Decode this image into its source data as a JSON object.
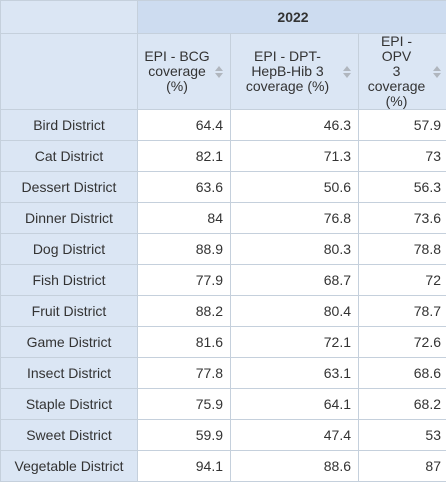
{
  "table": {
    "year": "2022",
    "columns": [
      {
        "lines": [
          "EPI - BCG",
          "coverage",
          "(%)"
        ]
      },
      {
        "lines": [
          "EPI - DPT-",
          "HepB-Hib 3",
          "coverage (%)"
        ]
      },
      {
        "lines": [
          "EPI - OPV",
          "3",
          "coverage",
          "(%)"
        ]
      }
    ],
    "rows": [
      {
        "label": "Bird District",
        "values": [
          "64.4",
          "46.3",
          "57.9"
        ]
      },
      {
        "label": "Cat District",
        "values": [
          "82.1",
          "71.3",
          "73"
        ]
      },
      {
        "label": "Dessert District",
        "values": [
          "63.6",
          "50.6",
          "56.3"
        ]
      },
      {
        "label": "Dinner District",
        "values": [
          "84",
          "76.8",
          "73.6"
        ]
      },
      {
        "label": "Dog District",
        "values": [
          "88.9",
          "80.3",
          "78.8"
        ]
      },
      {
        "label": "Fish District",
        "values": [
          "77.9",
          "68.7",
          "72"
        ]
      },
      {
        "label": "Fruit District",
        "values": [
          "88.2",
          "80.4",
          "78.7"
        ]
      },
      {
        "label": "Game District",
        "values": [
          "81.6",
          "72.1",
          "72.6"
        ]
      },
      {
        "label": "Insect District",
        "values": [
          "77.8",
          "63.1",
          "68.6"
        ]
      },
      {
        "label": "Staple District",
        "values": [
          "75.9",
          "64.1",
          "68.2"
        ]
      },
      {
        "label": "Sweet District",
        "values": [
          "59.9",
          "47.4",
          "53"
        ]
      },
      {
        "label": "Vegetable District",
        "values": [
          "94.1",
          "88.6",
          "87"
        ]
      }
    ]
  },
  "icons": {
    "sort": "sort-icon"
  },
  "colors": {
    "header_bg": "#dbe6f4",
    "year_bg": "#cddcf0",
    "border": "#c5d0dc"
  }
}
